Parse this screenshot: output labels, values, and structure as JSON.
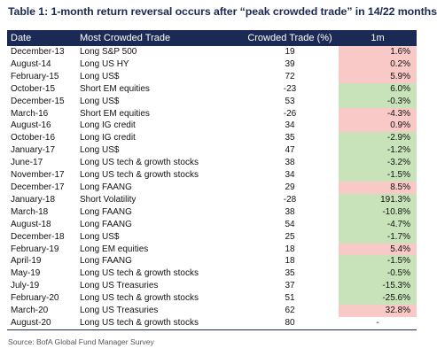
{
  "title": "Table 1: 1-month return reversal occurs after “peak crowded trade” in 14/22 months",
  "columns": [
    "Date",
    "Most Crowded Trade",
    "Crowded Trade (%)",
    "1m"
  ],
  "colors": {
    "header_bg": "#1b2a55",
    "negative_return": "#c8e3b9",
    "positive_return": "#f8c9c6"
  },
  "rows": [
    {
      "date": "December-13",
      "trade": "Long S&P 500",
      "pct": "19",
      "ret": "1.6%",
      "sign": "pos"
    },
    {
      "date": "August-14",
      "trade": "Long US HY",
      "pct": "39",
      "ret": "0.2%",
      "sign": "pos"
    },
    {
      "date": "February-15",
      "trade": "Long US$",
      "pct": "72",
      "ret": "5.9%",
      "sign": "pos"
    },
    {
      "date": "October-15",
      "trade": "Short EM equities",
      "pct": "-23",
      "ret": "6.0%",
      "sign": "neg"
    },
    {
      "date": "December-15",
      "trade": "Long US$",
      "pct": "53",
      "ret": "-0.3%",
      "sign": "neg"
    },
    {
      "date": "March-16",
      "trade": "Short EM equities",
      "pct": "-26",
      "ret": "-4.3%",
      "sign": "pos"
    },
    {
      "date": "August-16",
      "trade": "Long IG credit",
      "pct": "34",
      "ret": "0.9%",
      "sign": "pos"
    },
    {
      "date": "October-16",
      "trade": "Long IG credit",
      "pct": "35",
      "ret": "-2.9%",
      "sign": "neg"
    },
    {
      "date": "January-17",
      "trade": "Long US$",
      "pct": "47",
      "ret": "-1.2%",
      "sign": "neg"
    },
    {
      "date": "June-17",
      "trade": "Long US tech & growth stocks",
      "pct": "38",
      "ret": "-3.2%",
      "sign": "neg"
    },
    {
      "date": "November-17",
      "trade": "Long US tech & growth stocks",
      "pct": "34",
      "ret": "-1.5%",
      "sign": "neg"
    },
    {
      "date": "December-17",
      "trade": "Long FAANG",
      "pct": "29",
      "ret": "8.5%",
      "sign": "pos"
    },
    {
      "date": "January-18",
      "trade": "Short Volatility",
      "pct": "-28",
      "ret": "191.3%",
      "sign": "neg"
    },
    {
      "date": "March-18",
      "trade": "Long FAANG",
      "pct": "38",
      "ret": "-10.8%",
      "sign": "neg"
    },
    {
      "date": "August-18",
      "trade": "Long FAANG",
      "pct": "54",
      "ret": "-4.7%",
      "sign": "neg"
    },
    {
      "date": "December-18",
      "trade": "Long US$",
      "pct": "25",
      "ret": "-1.7%",
      "sign": "neg"
    },
    {
      "date": "February-19",
      "trade": "Long EM equities",
      "pct": "18",
      "ret": "5.4%",
      "sign": "pos"
    },
    {
      "date": "April-19",
      "trade": "Long FAANG",
      "pct": "18",
      "ret": "-1.5%",
      "sign": "neg"
    },
    {
      "date": "May-19",
      "trade": "Long US tech & growth stocks",
      "pct": "35",
      "ret": "-0.5%",
      "sign": "neg"
    },
    {
      "date": "July-19",
      "trade": "Long US Treasuries",
      "pct": "37",
      "ret": "-15.3%",
      "sign": "neg"
    },
    {
      "date": "February-20",
      "trade": "Long US tech & growth stocks",
      "pct": "51",
      "ret": "-25.6%",
      "sign": "neg"
    },
    {
      "date": "March-20",
      "trade": "Long US Treasuries",
      "pct": "62",
      "ret": "32.8%",
      "sign": "pos"
    },
    {
      "date": "August-20",
      "trade": "Long US tech & growth stocks",
      "pct": "80",
      "ret": "-",
      "sign": "na"
    }
  ],
  "source": "Source: BofA Global Fund Manager Survey"
}
